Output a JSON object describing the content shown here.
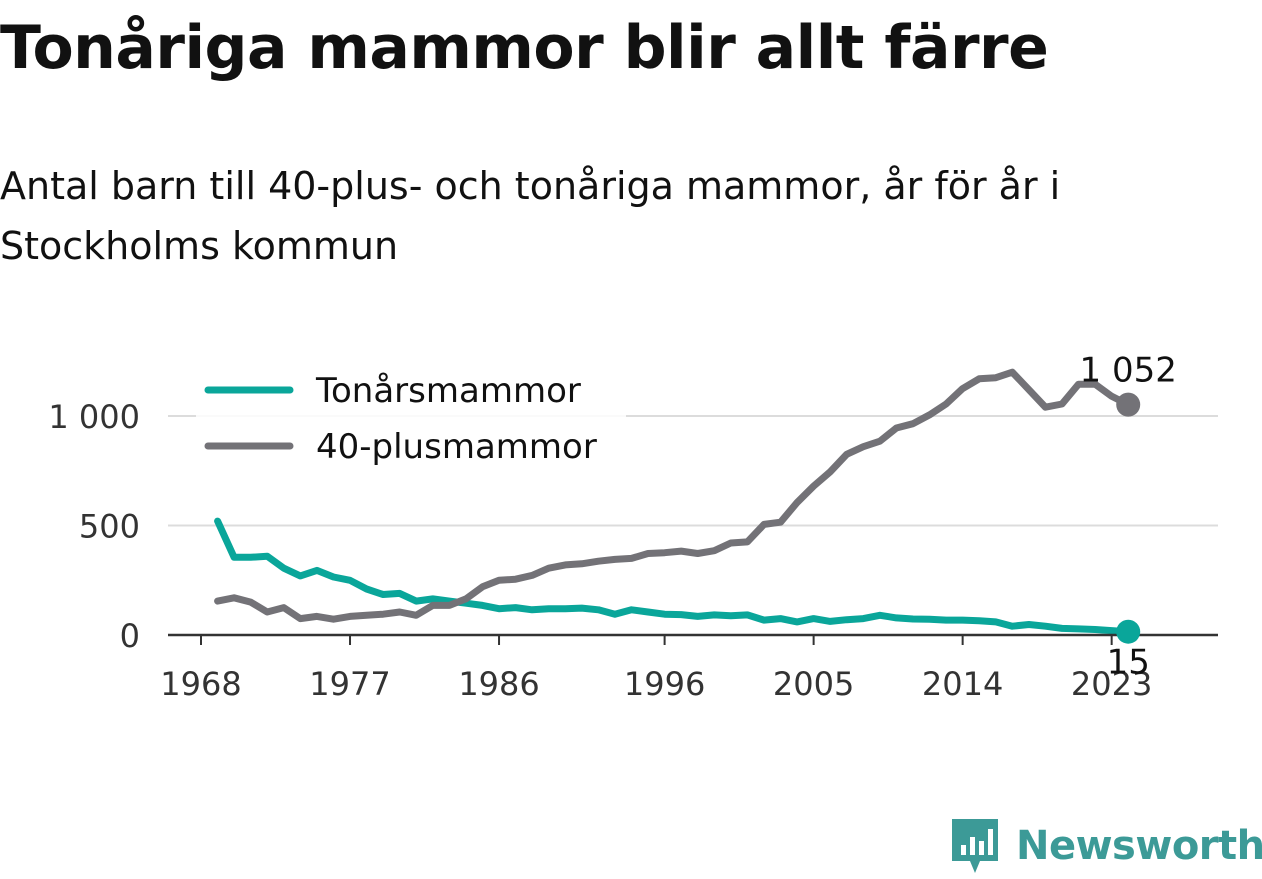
{
  "title": "Tonåriga mammor blir allt färre",
  "subtitle": "Antal barn till 40-plus- och tonåriga mammor, år för år i Stockholms kommun",
  "brand": {
    "name": "Newsworthy",
    "icon": "newsworthy-logo-icon",
    "color": "#3c9a97"
  },
  "chart_data": {
    "type": "line",
    "x_ticks": [
      "1968",
      "1977",
      "1986",
      "1996",
      "2005",
      "2014",
      "2023"
    ],
    "y_ticks": [
      "0",
      "500",
      "1 000"
    ],
    "ylim": [
      0,
      1250
    ],
    "xlim": [
      1968,
      2029
    ],
    "grid": true,
    "legend_position": "top-left",
    "x": [
      1969,
      1970,
      1971,
      1972,
      1973,
      1974,
      1975,
      1976,
      1977,
      1978,
      1979,
      1980,
      1981,
      1982,
      1983,
      1984,
      1985,
      1986,
      1987,
      1988,
      1989,
      1990,
      1991,
      1992,
      1993,
      1994,
      1995,
      1996,
      1997,
      1998,
      1999,
      2000,
      2001,
      2002,
      2003,
      2004,
      2005,
      2006,
      2007,
      2008,
      2009,
      2010,
      2011,
      2012,
      2013,
      2014,
      2015,
      2016,
      2017,
      2018,
      2019,
      2020,
      2021,
      2022,
      2023,
      2024
    ],
    "series": [
      {
        "name": "Tonårsmammor",
        "color": "#0aa69a",
        "end_label": "15",
        "values": [
          520,
          355,
          355,
          360,
          305,
          270,
          295,
          265,
          250,
          210,
          185,
          190,
          155,
          165,
          155,
          145,
          135,
          120,
          125,
          115,
          120,
          120,
          123,
          115,
          95,
          115,
          105,
          95,
          93,
          85,
          92,
          88,
          92,
          68,
          75,
          60,
          75,
          62,
          70,
          75,
          90,
          78,
          73,
          72,
          68,
          68,
          65,
          60,
          40,
          48,
          40,
          30,
          28,
          25,
          20,
          15
        ]
      },
      {
        "name": "40-plusmammor",
        "color": "#737277",
        "end_label": "1 052",
        "values": [
          155,
          170,
          150,
          105,
          125,
          75,
          85,
          72,
          85,
          90,
          95,
          105,
          90,
          135,
          135,
          165,
          220,
          250,
          255,
          272,
          305,
          320,
          325,
          337,
          345,
          350,
          372,
          376,
          383,
          372,
          385,
          420,
          425,
          505,
          515,
          605,
          680,
          745,
          825,
          860,
          885,
          945,
          965,
          1005,
          1055,
          1125,
          1170,
          1175,
          1200,
          1120,
          1040,
          1055,
          1145,
          1145,
          1090,
          1052
        ]
      }
    ]
  }
}
